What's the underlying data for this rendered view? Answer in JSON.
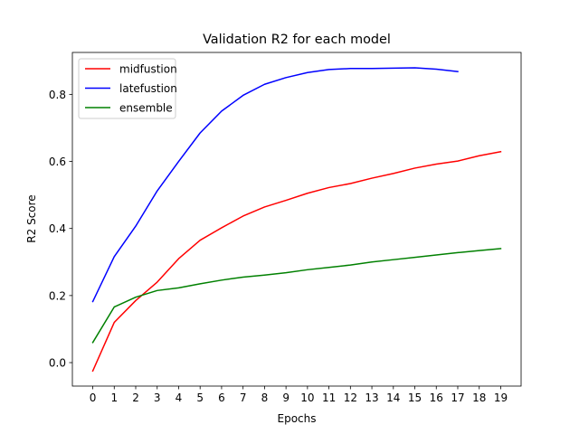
{
  "chart_data": {
    "type": "line",
    "title": "Validation R2 for each model",
    "xlabel": "Epochs",
    "ylabel": "R2 Score",
    "xlim": [
      -0.95,
      19.95
    ],
    "ylim": [
      -0.07,
      0.925
    ],
    "x_ticks": [
      0,
      1,
      2,
      3,
      4,
      5,
      6,
      7,
      8,
      9,
      10,
      11,
      12,
      13,
      14,
      15,
      16,
      17,
      18,
      19
    ],
    "y_ticks": [
      0.0,
      0.2,
      0.4,
      0.6,
      0.8
    ],
    "y_tick_labels": [
      "0.0",
      "0.2",
      "0.4",
      "0.6",
      "0.8"
    ],
    "grid": false,
    "legend_position": "top-left",
    "series": [
      {
        "name": "midfustion",
        "color": "#ff0000",
        "x": [
          0,
          1,
          2,
          3,
          4,
          5,
          6,
          7,
          8,
          9,
          10,
          11,
          12,
          13,
          14,
          15,
          16,
          17,
          18,
          19
        ],
        "values": [
          -0.025,
          0.12,
          0.185,
          0.24,
          0.31,
          0.365,
          0.402,
          0.437,
          0.464,
          0.484,
          0.505,
          0.522,
          0.534,
          0.55,
          0.564,
          0.58,
          0.592,
          0.601,
          0.617,
          0.629
        ]
      },
      {
        "name": "latefustion",
        "color": "#0000ff",
        "x": [
          0,
          1,
          2,
          3,
          4,
          5,
          6,
          7,
          8,
          9,
          10,
          11,
          12,
          13,
          14,
          15,
          16,
          17
        ],
        "values": [
          0.182,
          0.316,
          0.407,
          0.512,
          0.6,
          0.685,
          0.75,
          0.797,
          0.83,
          0.85,
          0.865,
          0.874,
          0.877,
          0.877,
          0.878,
          0.879,
          0.875,
          0.868
        ]
      },
      {
        "name": "ensemble",
        "color": "#008000",
        "x": [
          0,
          1,
          2,
          3,
          4,
          5,
          6,
          7,
          8,
          9,
          10,
          11,
          12,
          13,
          14,
          15,
          16,
          17,
          18,
          19
        ],
        "values": [
          0.06,
          0.166,
          0.195,
          0.215,
          0.223,
          0.235,
          0.246,
          0.255,
          0.261,
          0.268,
          0.277,
          0.284,
          0.291,
          0.3,
          0.307,
          0.314,
          0.321,
          0.328,
          0.334,
          0.34
        ]
      }
    ]
  }
}
